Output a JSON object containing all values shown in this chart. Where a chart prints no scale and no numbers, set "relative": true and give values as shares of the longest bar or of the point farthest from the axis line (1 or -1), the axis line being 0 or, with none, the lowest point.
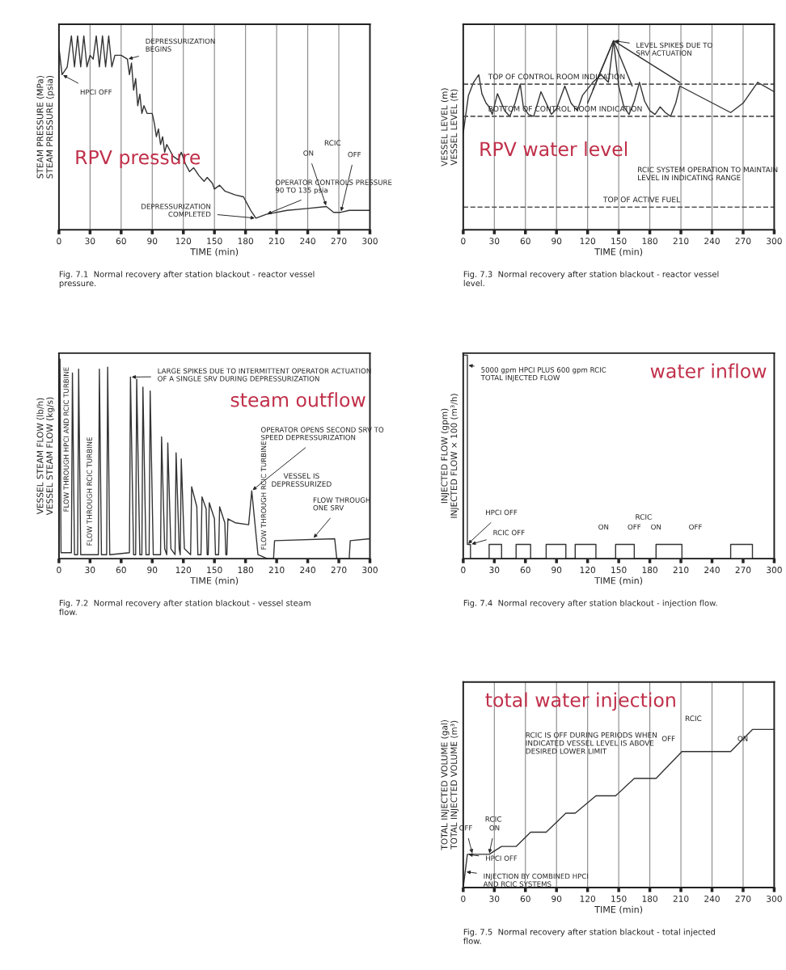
{
  "chart_data": [
    {
      "type": "line",
      "title": "RPV pressure",
      "xlabel": "TIME (min)",
      "ylabel": "STEAM PRESSURE (MPa)\nSTEAM PRESSURE (psia)",
      "relative": true,
      "xlim": [
        0,
        300
      ],
      "xticks": [
        0,
        30,
        60,
        90,
        120,
        150,
        180,
        210,
        240,
        270,
        300
      ],
      "grid": "x",
      "series": [
        {
          "color": "#333333",
          "x": [
            0,
            3,
            8,
            12,
            15,
            18,
            21,
            24,
            27,
            30,
            33,
            36,
            39,
            42,
            45,
            48,
            51,
            54,
            60,
            66,
            68,
            70,
            72,
            74,
            76,
            78,
            80,
            82,
            85,
            88,
            90,
            92,
            94,
            96,
            98,
            100,
            102,
            104,
            110,
            115,
            118,
            122,
            126,
            130,
            135,
            140,
            143,
            148,
            150,
            155,
            160,
            170,
            178,
            185,
            190,
            200,
            220,
            240,
            258,
            265,
            272,
            280,
            300
          ],
          "values": [
            0.94,
            0.8,
            0.84,
            1.0,
            0.84,
            1.0,
            0.84,
            1.0,
            0.84,
            0.9,
            0.88,
            1.0,
            0.84,
            1.0,
            0.84,
            1.0,
            0.84,
            0.9,
            0.9,
            0.88,
            0.8,
            0.86,
            0.72,
            0.78,
            0.64,
            0.7,
            0.6,
            0.64,
            0.6,
            0.6,
            0.6,
            0.55,
            0.48,
            0.52,
            0.44,
            0.48,
            0.4,
            0.44,
            0.38,
            0.36,
            0.4,
            0.34,
            0.3,
            0.32,
            0.28,
            0.25,
            0.27,
            0.24,
            0.21,
            0.23,
            0.2,
            0.18,
            0.17,
            0.1,
            0.06,
            0.08,
            0.1,
            0.11,
            0.12,
            0.09,
            0.09,
            0.1,
            0.1
          ]
        }
      ],
      "annotations": [
        {
          "text": "HPCI OFF",
          "x": 3,
          "y": 0.8
        },
        {
          "text": "DEPRESSURIZATION\nBEGINS",
          "x": 66,
          "y": 0.88
        },
        {
          "text": "DEPRESSURIZATION\nCOMPLETED",
          "x": 190,
          "y": 0.06
        },
        {
          "text": "OPERATOR CONTROLS PRESSURE\n90 TO 135 psia",
          "x": 200,
          "y": 0.08
        },
        "RCIC",
        {
          "text": "ON",
          "x": 258,
          "y": 0.12
        },
        {
          "text": "OFF",
          "x": 272,
          "y": 0.09
        },
        "Fig. 7.1  Normal recovery after station blackout - reactor vessel\npressure."
      ]
    },
    {
      "type": "line",
      "title": "RPV water level",
      "xlabel": "TIME (min)",
      "ylabel": "VESSEL LEVEL (m)\nVESSEL LEVEL (ft)",
      "relative": true,
      "xlim": [
        0,
        300
      ],
      "xticks": [
        0,
        30,
        60,
        90,
        120,
        150,
        180,
        210,
        240,
        270,
        300
      ],
      "grid": "x",
      "series": [
        {
          "color": "#333333",
          "x": [
            0,
            5,
            10,
            15,
            18,
            22,
            25,
            28,
            33,
            40,
            45,
            50,
            55,
            58,
            63,
            68,
            75,
            80,
            85,
            90,
            98,
            104,
            110,
            115,
            125,
            133,
            140,
            145,
            150,
            155,
            160,
            165,
            170,
            175,
            180,
            185,
            190,
            195,
            200,
            205,
            209,
            258,
            270,
            284,
            300
          ],
          "values": [
            0.51,
            0.71,
            0.78,
            0.82,
            0.72,
            0.67,
            0.65,
            0.61,
            0.72,
            0.63,
            0.6,
            0.67,
            0.77,
            0.65,
            0.61,
            0.6,
            0.73,
            0.67,
            0.61,
            0.64,
            0.76,
            0.67,
            0.63,
            0.71,
            0.78,
            0.82,
            0.78,
            1.0,
            0.76,
            0.65,
            0.61,
            0.68,
            0.78,
            0.68,
            0.63,
            0.61,
            0.65,
            0.62,
            0.6,
            0.67,
            0.76,
            0.62,
            0.67,
            0.78,
            0.73
          ]
        },
        {
          "color": "#333333",
          "x": [
            120,
            145,
            209
          ],
          "values": [
            0.67,
            1.0,
            0.78
          ]
        },
        {
          "color": "#333333",
          "x": [
            125,
            145,
            163
          ],
          "values": [
            0.74,
            1.0,
            0.76
          ]
        }
      ],
      "ref_lines": [
        {
          "axis": "y",
          "value": 0.77,
          "label": "TOP OF CONTROL ROOM INDICATION",
          "line_style": "dashed",
          "color": "#555555"
        },
        {
          "axis": "y",
          "value": 0.6,
          "label": "BOTTOM OF CONTROL ROOM INDICATION",
          "line_style": "dashed",
          "color": "#555555"
        },
        {
          "axis": "y",
          "value": 0.12,
          "label": "TOP OF ACTIVE FUEL",
          "line_style": "dashed",
          "color": "#555555"
        }
      ],
      "annotations": [
        {
          "text": "LEVEL SPIKES DUE TO\nSRV ACTUATION",
          "x": 145,
          "y": 1.0
        },
        "RCIC SYSTEM OPERATION TO MAINTAIN\nLEVEL IN INDICATING RANGE",
        "Fig. 7.3  Normal recovery after station blackout - reactor vessel\nlevel."
      ]
    },
    {
      "type": "line",
      "title": "steam outflow",
      "xlabel": "TIME (min)",
      "ylabel": "VESSEL STEAM FLOW (lb/h)\nVESSEL STEAM FLOW (kg/s)",
      "relative": true,
      "xlim": [
        0,
        300
      ],
      "xticks": [
        0,
        30,
        60,
        90,
        120,
        150,
        180,
        210,
        240,
        270,
        300
      ],
      "series": [
        {
          "color": "#333333",
          "x": [
            0,
            1,
            2,
            12,
            13,
            15,
            18,
            19,
            21,
            38,
            39,
            41,
            46,
            47,
            49,
            68,
            69,
            72,
            74,
            75,
            78,
            80,
            81,
            84,
            87,
            88,
            91,
            98,
            99,
            102,
            104,
            105,
            108,
            112,
            113,
            116,
            117,
            118,
            121,
            127,
            128,
            133,
            134,
            137,
            138,
            142,
            143,
            144,
            145,
            150,
            151,
            154,
            155,
            160,
            161,
            162,
            163,
            170,
            183,
            186,
            192,
            201,
            207,
            208,
            266,
            268,
            280,
            281,
            300
          ],
          "values": [
            0.0,
            1.0,
            0.03,
            0.03,
            0.93,
            0.02,
            0.02,
            0.95,
            0.02,
            0.02,
            0.95,
            0.02,
            0.02,
            0.96,
            0.02,
            0.03,
            0.91,
            0.02,
            0.02,
            0.9,
            0.02,
            0.02,
            0.86,
            0.02,
            0.02,
            0.84,
            0.02,
            0.02,
            0.61,
            0.05,
            0.02,
            0.58,
            0.05,
            0.02,
            0.53,
            0.05,
            0.02,
            0.5,
            0.05,
            0.02,
            0.36,
            0.26,
            0.02,
            0.02,
            0.31,
            0.25,
            0.02,
            0.02,
            0.28,
            0.2,
            0.02,
            0.02,
            0.26,
            0.18,
            0.02,
            0.02,
            0.2,
            0.18,
            0.17,
            0.34,
            0.02,
            0.0,
            0.0,
            0.09,
            0.1,
            0.0,
            0.0,
            0.09,
            0.1
          ]
        }
      ],
      "annotations": [
        {
          "text": "FLOW THROUGH HPCI AND RCIC TURBINE",
          "x": 1,
          "y": 0.2
        },
        {
          "text": "FLOW THROUGH RCIC TURBINE",
          "x": 30,
          "y": 0.03
        },
        {
          "text": "LARGE SPIKES DUE TO INTERMITTENT OPERATOR ACTUATION\nOF A SINGLE SRV DURING DEPRESSURIZATION",
          "x": 69,
          "y": 0.91
        },
        {
          "text": "OPERATOR OPENS SECOND SRV TO\nSPEED DEPRESSURIZATION",
          "x": 186,
          "y": 0.34
        },
        {
          "text": "FLOW THROUGH RCIC TURBINE",
          "x": 198,
          "y": 0.01
        },
        "VESSEL IS\nDEPRESSURIZED",
        {
          "text": "FLOW THROUGH\nONE SRV",
          "x": 245,
          "y": 0.1
        },
        "Fig. 7.2  Normal recovery after station blackout - vessel steam\nflow."
      ]
    },
    {
      "type": "line",
      "title": "water inflow",
      "xlabel": "TIME (min)",
      "ylabel": "INJECTED FLOW (gpm)\nINJECTED FLOW × 100 (m³/h)",
      "relative": true,
      "xlim": [
        0,
        300
      ],
      "xticks": [
        0,
        30,
        60,
        90,
        120,
        150,
        180,
        210,
        240,
        270,
        300
      ],
      "series": [
        {
          "color": "#333333",
          "x": [
            0,
            4,
            4,
            7,
            7,
            25,
            25,
            37,
            37,
            51,
            51,
            65,
            65,
            80,
            80,
            99,
            99,
            108,
            108,
            128,
            128,
            147,
            147,
            165,
            165,
            186,
            186,
            211,
            211,
            258,
            258,
            279,
            279,
            300
          ],
          "values": [
            1.0,
            1.0,
            0.07,
            0.07,
            0.0,
            0.0,
            0.07,
            0.07,
            0.0,
            0.0,
            0.07,
            0.07,
            0.0,
            0.0,
            0.07,
            0.07,
            0.0,
            0.0,
            0.07,
            0.07,
            0.0,
            0.0,
            0.07,
            0.07,
            0.0,
            0.0,
            0.07,
            0.07,
            0.0,
            0.0,
            0.07,
            0.07,
            0.0,
            0.0
          ]
        }
      ],
      "annotations": [
        {
          "text": "5000 gpm HPCI PLUS 600 gpm RCIC\nTOTAL INJECTED FLOW",
          "x": 4,
          "y": 0.95
        },
        {
          "text": "HPCI OFF",
          "x": 4,
          "y": 0.07
        },
        {
          "text": "RCIC OFF",
          "x": 7,
          "y": 0.07
        },
        "RCIC",
        {
          "text": "ON",
          "x": 147,
          "y": 0.07
        },
        {
          "text": "OFF",
          "x": 165,
          "y": 0.07
        },
        {
          "text": "ON",
          "x": 186,
          "y": 0.07
        },
        {
          "text": "OFF",
          "x": 211,
          "y": 0.07
        },
        "Fig. 7.4  Normal recovery after station blackout - injection flow."
      ]
    },
    {
      "type": "line",
      "title": "total water injection",
      "xlabel": "TIME (min)",
      "ylabel": "TOTAL INJECTED VOLUME (gal)\nTOTAL INJECTED VOLUME (m³)",
      "relative": true,
      "xlim": [
        0,
        300
      ],
      "xticks": [
        0,
        30,
        60,
        90,
        120,
        150,
        180,
        210,
        240,
        270,
        300
      ],
      "grid": "x",
      "series": [
        {
          "color": "#333333",
          "x": [
            0,
            4,
            25,
            37,
            51,
            65,
            80,
            99,
            108,
            128,
            147,
            165,
            186,
            211,
            258,
            279,
            300
          ],
          "values": [
            0.0,
            0.21,
            0.21,
            0.26,
            0.26,
            0.35,
            0.35,
            0.47,
            0.47,
            0.58,
            0.58,
            0.69,
            0.69,
            0.86,
            0.86,
            1.0,
            1.0
          ]
        }
      ],
      "annotations": [
        "RCIC",
        {
          "text": "OFF",
          "x": 9,
          "y": 0.21
        },
        {
          "text": "ON",
          "x": 25,
          "y": 0.21
        },
        {
          "text": "HPCI OFF",
          "x": 4,
          "y": 0.21
        },
        {
          "text": "INJECTION BY COMBINED HPCI\nAND RCIC SYSTEMS",
          "x": 2,
          "y": 0.1
        },
        "RCIC IS OFF DURING PERIODS WHEN\nINDICATED VESSEL LEVEL IS ABOVE\nDESIRED LOWER LIMIT",
        "RCIC",
        {
          "text": "OFF",
          "x": 211,
          "y": 0.86
        },
        {
          "text": "ON",
          "x": 258,
          "y": 0.86
        },
        "Fig. 7.5  Normal recovery after station blackout - total injected\nflow."
      ]
    }
  ]
}
